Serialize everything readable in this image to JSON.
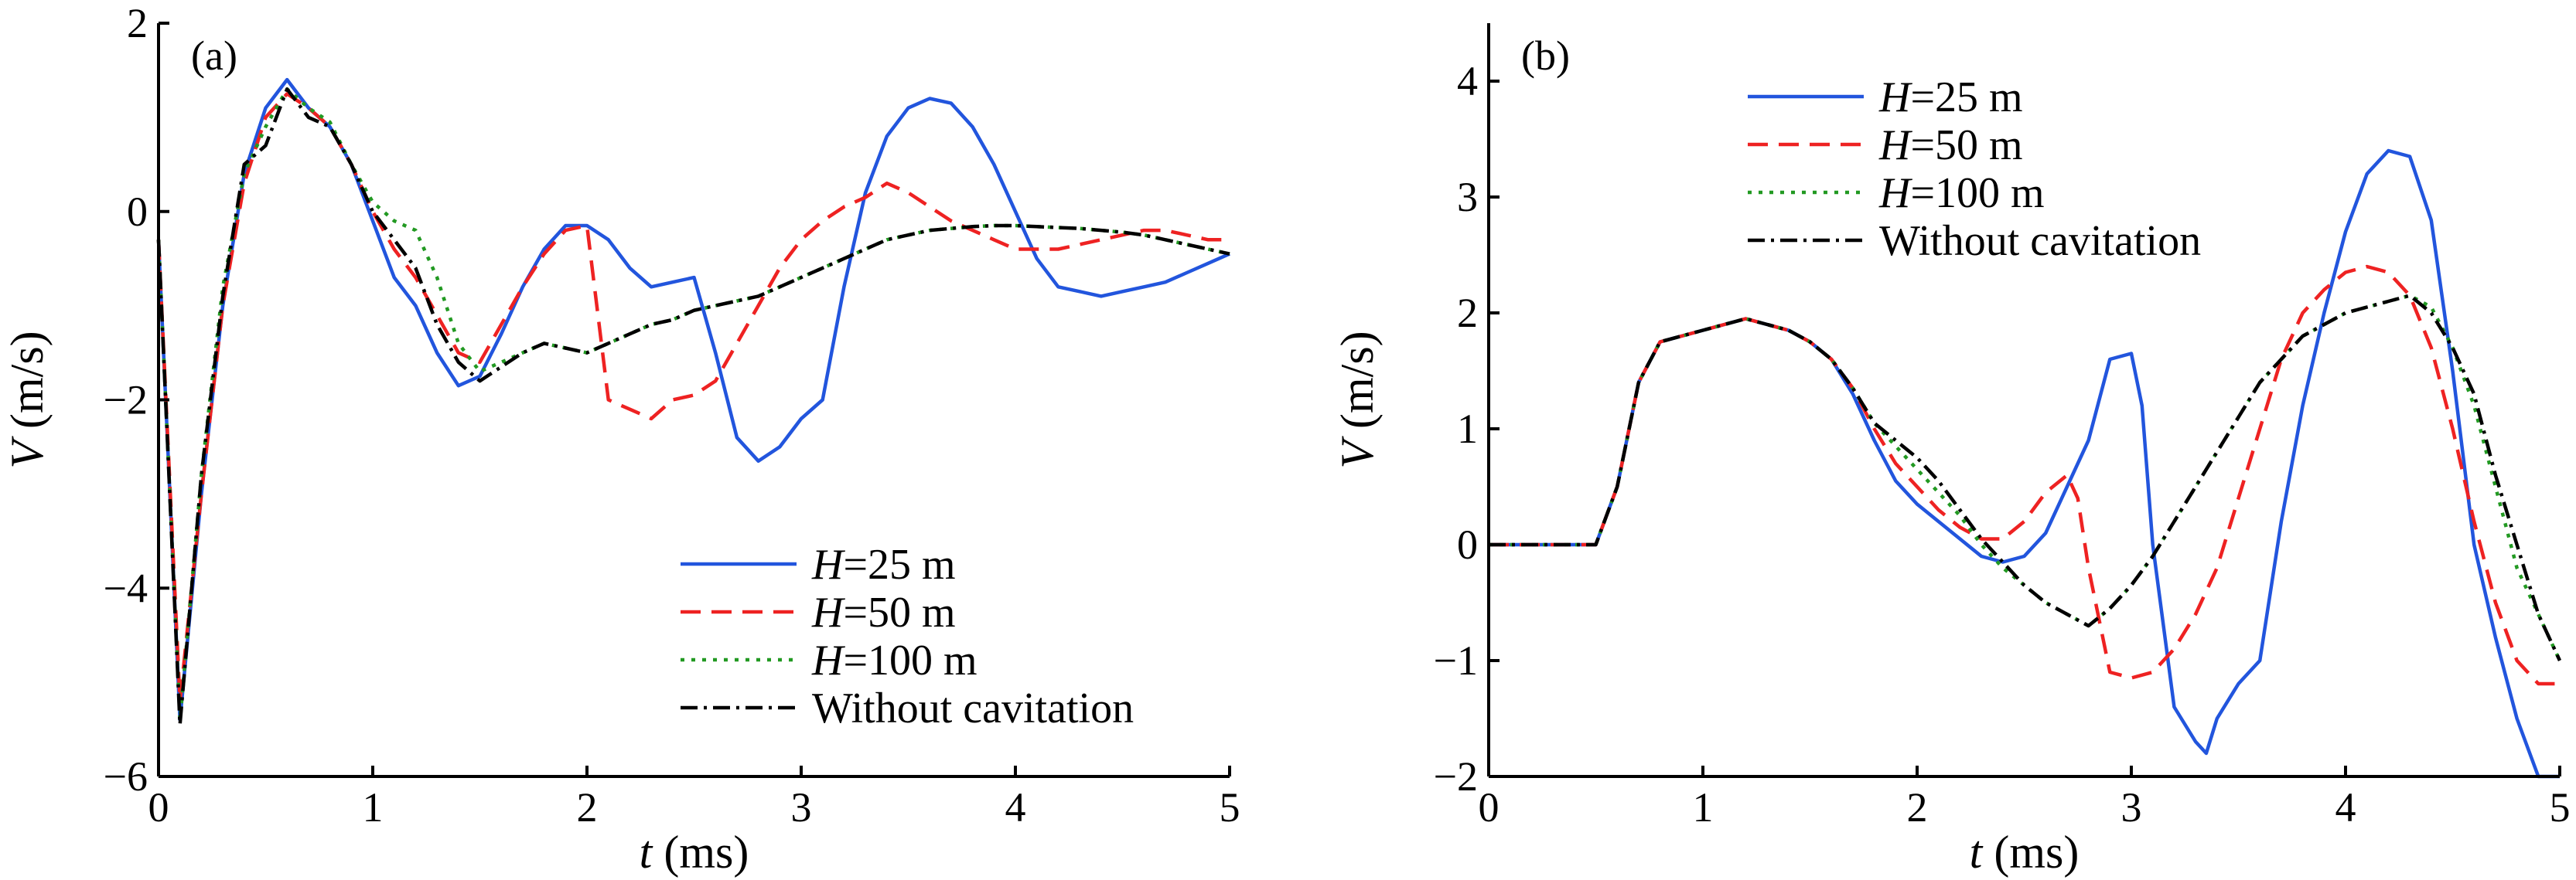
{
  "chart_data": [
    {
      "type": "line",
      "panel_label": "(a)",
      "xlabel_var": "t",
      "xlabel_unit": " (ms)",
      "ylabel_var": "V",
      "ylabel_unit": " (m/s)",
      "xlim": [
        0,
        5
      ],
      "ylim": [
        -6,
        2
      ],
      "xticks": [
        0,
        1,
        2,
        3,
        4,
        5
      ],
      "yticks": [
        -6,
        -4,
        -2,
        0,
        2
      ],
      "ytick_labels": [
        "−6",
        "−4",
        "−2",
        "0",
        "2"
      ],
      "legend_position": "bottom-right",
      "grid": false,
      "series": [
        {
          "name_var": "H",
          "name_rest": "=25 m",
          "color": "#2255dd",
          "dash": "",
          "x": [
            0,
            0.1,
            0.2,
            0.3,
            0.4,
            0.5,
            0.6,
            0.7,
            0.8,
            0.9,
            1.0,
            1.1,
            1.2,
            1.3,
            1.4,
            1.5,
            1.6,
            1.7,
            1.8,
            1.9,
            2.0,
            2.1,
            2.2,
            2.3,
            2.4,
            2.5,
            2.6,
            2.7,
            2.8,
            2.9,
            3.0,
            3.1,
            3.2,
            3.3,
            3.4,
            3.5,
            3.6,
            3.7,
            3.8,
            3.9,
            4.0,
            4.1,
            4.2,
            4.3,
            4.4,
            4.5,
            4.6,
            4.7,
            4.8,
            4.9,
            5.0
          ],
          "y": [
            -0.3,
            -5.4,
            -3.0,
            -1.0,
            0.4,
            1.1,
            1.4,
            1.1,
            0.9,
            0.5,
            -0.1,
            -0.7,
            -1.0,
            -1.5,
            -1.85,
            -1.75,
            -1.3,
            -0.8,
            -0.4,
            -0.15,
            -0.15,
            -0.3,
            -0.6,
            -0.8,
            -0.75,
            -0.7,
            -1.5,
            -2.4,
            -2.65,
            -2.5,
            -2.2,
            -2.0,
            -0.8,
            0.2,
            0.8,
            1.1,
            1.2,
            1.15,
            0.9,
            0.5,
            0.0,
            -0.5,
            -0.8,
            -0.85,
            -0.9,
            -0.85,
            -0.8,
            -0.75,
            -0.65,
            -0.55,
            -0.45
          ]
        },
        {
          "name_var": "H",
          "name_rest": "=50 m",
          "color": "#ee2222",
          "dash": "26,14",
          "x": [
            0,
            0.1,
            0.2,
            0.3,
            0.4,
            0.5,
            0.6,
            0.7,
            0.8,
            0.9,
            1.0,
            1.1,
            1.2,
            1.3,
            1.4,
            1.5,
            1.6,
            1.7,
            1.8,
            1.9,
            2.0,
            2.1,
            2.2,
            2.3,
            2.4,
            2.5,
            2.6,
            2.7,
            2.8,
            2.9,
            3.0,
            3.1,
            3.2,
            3.3,
            3.4,
            3.5,
            3.6,
            3.7,
            3.8,
            3.9,
            4.0,
            4.1,
            4.2,
            4.3,
            4.4,
            4.5,
            4.6,
            4.7,
            4.8,
            4.9,
            5.0
          ],
          "y": [
            -0.3,
            -5.2,
            -3.0,
            -1.0,
            0.3,
            1.0,
            1.25,
            1.1,
            0.9,
            0.5,
            0.0,
            -0.4,
            -0.7,
            -1.1,
            -1.5,
            -1.6,
            -1.2,
            -0.8,
            -0.45,
            -0.2,
            -0.15,
            -2.0,
            -2.1,
            -2.2,
            -2.0,
            -1.95,
            -1.8,
            -1.4,
            -1.0,
            -0.6,
            -0.3,
            -0.1,
            0.05,
            0.15,
            0.3,
            0.2,
            0.05,
            -0.1,
            -0.2,
            -0.3,
            -0.4,
            -0.4,
            -0.4,
            -0.35,
            -0.3,
            -0.25,
            -0.2,
            -0.2,
            -0.25,
            -0.3,
            -0.3
          ]
        },
        {
          "name_var": "H",
          "name_rest": "=100 m",
          "color": "#229922",
          "dash": "5,9",
          "x": [
            0,
            0.1,
            0.2,
            0.3,
            0.4,
            0.5,
            0.6,
            0.7,
            0.8,
            0.9,
            1.0,
            1.1,
            1.2,
            1.3,
            1.4,
            1.5,
            1.6,
            1.7,
            1.8,
            1.9,
            2.0,
            2.1,
            2.2,
            2.3,
            2.4,
            2.5,
            2.6,
            2.7,
            2.8,
            2.9,
            3.0,
            3.1,
            3.2,
            3.3,
            3.4,
            3.5,
            3.6,
            3.7,
            3.8,
            3.9,
            4.0,
            4.1,
            4.2,
            4.3,
            4.4,
            4.5,
            4.6,
            4.7,
            4.8,
            4.9,
            5.0
          ],
          "y": [
            -0.3,
            -5.4,
            -2.8,
            -0.8,
            0.4,
            0.9,
            1.3,
            1.1,
            0.95,
            0.5,
            0.1,
            -0.1,
            -0.2,
            -0.7,
            -1.4,
            -1.7,
            -1.6,
            -1.5,
            -1.4,
            -1.45,
            -1.5,
            -1.4,
            -1.3,
            -1.2,
            -1.15,
            -1.05,
            -1.0,
            -0.95,
            -0.9,
            -0.8,
            -0.7,
            -0.6,
            -0.5,
            -0.4,
            -0.3,
            -0.25,
            -0.2,
            -0.18,
            -0.16,
            -0.15,
            -0.15,
            -0.16,
            -0.17,
            -0.18,
            -0.2,
            -0.22,
            -0.25,
            -0.3,
            -0.35,
            -0.4,
            -0.45
          ]
        },
        {
          "name_var": "",
          "name_rest": "Without cavitation",
          "color": "#000000",
          "dash": "22,8,4,8",
          "x": [
            0,
            0.1,
            0.2,
            0.3,
            0.4,
            0.5,
            0.6,
            0.7,
            0.8,
            0.9,
            1.0,
            1.1,
            1.2,
            1.3,
            1.4,
            1.5,
            1.6,
            1.7,
            1.8,
            1.9,
            2.0,
            2.1,
            2.2,
            2.3,
            2.4,
            2.5,
            2.6,
            2.7,
            2.8,
            2.9,
            3.0,
            3.1,
            3.2,
            3.3,
            3.4,
            3.5,
            3.6,
            3.7,
            3.8,
            3.9,
            4.0,
            4.1,
            4.2,
            4.3,
            4.4,
            4.5,
            4.6,
            4.7,
            4.8,
            4.9,
            5.0
          ],
          "y": [
            -0.3,
            -5.45,
            -2.8,
            -0.9,
            0.5,
            0.7,
            1.3,
            1.0,
            0.9,
            0.5,
            0.0,
            -0.3,
            -0.6,
            -1.2,
            -1.6,
            -1.8,
            -1.65,
            -1.5,
            -1.4,
            -1.45,
            -1.5,
            -1.4,
            -1.3,
            -1.2,
            -1.15,
            -1.05,
            -1.0,
            -0.95,
            -0.9,
            -0.8,
            -0.7,
            -0.6,
            -0.5,
            -0.4,
            -0.3,
            -0.25,
            -0.2,
            -0.18,
            -0.16,
            -0.15,
            -0.15,
            -0.16,
            -0.17,
            -0.18,
            -0.2,
            -0.22,
            -0.25,
            -0.3,
            -0.35,
            -0.4,
            -0.45
          ]
        }
      ]
    },
    {
      "type": "line",
      "panel_label": "(b)",
      "xlabel_var": "t",
      "xlabel_unit": " (ms)",
      "ylabel_var": "V",
      "ylabel_unit": " (m/s)",
      "xlim": [
        0,
        5
      ],
      "ylim": [
        -2,
        4.5
      ],
      "xticks": [
        0,
        1,
        2,
        3,
        4,
        5
      ],
      "yticks": [
        -2,
        -1,
        0,
        1,
        2,
        3,
        4
      ],
      "ytick_labels": [
        "−2",
        "−1",
        "0",
        "1",
        "2",
        "3",
        "4"
      ],
      "legend_position": "top-left",
      "grid": false,
      "series": [
        {
          "name_var": "H",
          "name_rest": "=25 m",
          "color": "#2255dd",
          "dash": "",
          "x": [
            0,
            0.5,
            0.6,
            0.7,
            0.8,
            0.9,
            1.0,
            1.1,
            1.2,
            1.3,
            1.4,
            1.5,
            1.6,
            1.7,
            1.8,
            1.9,
            2.0,
            2.1,
            2.2,
            2.3,
            2.4,
            2.5,
            2.6,
            2.7,
            2.8,
            2.9,
            3.0,
            3.05,
            3.1,
            3.2,
            3.3,
            3.35,
            3.4,
            3.5,
            3.6,
            3.7,
            3.8,
            3.9,
            4.0,
            4.1,
            4.2,
            4.3,
            4.4,
            4.5,
            4.6,
            4.7,
            4.8,
            4.9,
            5.0
          ],
          "y": [
            0,
            0.0,
            0.5,
            1.4,
            1.75,
            1.8,
            1.85,
            1.9,
            1.95,
            1.9,
            1.85,
            1.75,
            1.6,
            1.3,
            0.9,
            0.55,
            0.35,
            0.2,
            0.05,
            -0.1,
            -0.15,
            -0.1,
            0.1,
            0.5,
            0.9,
            1.6,
            1.65,
            1.2,
            0.0,
            -1.4,
            -1.7,
            -1.8,
            -1.5,
            -1.2,
            -1.0,
            0.2,
            1.2,
            2.0,
            2.7,
            3.2,
            3.4,
            3.35,
            2.8,
            1.5,
            0.0,
            -0.8,
            -1.5,
            -2.0,
            -2.0
          ]
        },
        {
          "name_var": "H",
          "name_rest": "=50 m",
          "color": "#ee2222",
          "dash": "26,14",
          "x": [
            0,
            0.5,
            0.6,
            0.7,
            0.8,
            0.9,
            1.0,
            1.1,
            1.2,
            1.3,
            1.4,
            1.5,
            1.6,
            1.7,
            1.8,
            1.9,
            2.0,
            2.1,
            2.2,
            2.3,
            2.4,
            2.5,
            2.6,
            2.7,
            2.75,
            2.8,
            2.9,
            3.0,
            3.1,
            3.2,
            3.3,
            3.4,
            3.5,
            3.6,
            3.7,
            3.8,
            3.9,
            4.0,
            4.1,
            4.2,
            4.3,
            4.4,
            4.5,
            4.6,
            4.7,
            4.8,
            4.9,
            5.0
          ],
          "y": [
            0,
            0.0,
            0.5,
            1.4,
            1.75,
            1.8,
            1.85,
            1.9,
            1.95,
            1.9,
            1.85,
            1.75,
            1.6,
            1.35,
            1.0,
            0.7,
            0.5,
            0.3,
            0.15,
            0.05,
            0.05,
            0.2,
            0.45,
            0.6,
            0.4,
            -0.2,
            -1.1,
            -1.15,
            -1.1,
            -0.9,
            -0.6,
            -0.2,
            0.4,
            1.0,
            1.6,
            2.0,
            2.2,
            2.35,
            2.4,
            2.35,
            2.15,
            1.7,
            1.0,
            0.2,
            -0.5,
            -1.0,
            -1.2,
            -1.2
          ]
        },
        {
          "name_var": "H",
          "name_rest": "=100 m",
          "color": "#229922",
          "dash": "5,9",
          "x": [
            0,
            0.5,
            0.6,
            0.7,
            0.8,
            0.9,
            1.0,
            1.1,
            1.2,
            1.3,
            1.4,
            1.5,
            1.6,
            1.7,
            1.8,
            1.9,
            2.0,
            2.1,
            2.2,
            2.3,
            2.4,
            2.5,
            2.6,
            2.7,
            2.8,
            2.9,
            3.0,
            3.1,
            3.2,
            3.3,
            3.4,
            3.5,
            3.6,
            3.7,
            3.8,
            3.9,
            4.0,
            4.1,
            4.2,
            4.3,
            4.4,
            4.5,
            4.6,
            4.7,
            4.8,
            4.9,
            5.0
          ],
          "y": [
            0,
            0.0,
            0.5,
            1.4,
            1.75,
            1.8,
            1.85,
            1.9,
            1.95,
            1.9,
            1.85,
            1.75,
            1.6,
            1.35,
            1.05,
            0.85,
            0.65,
            0.45,
            0.25,
            0.0,
            -0.2,
            -0.35,
            -0.5,
            -0.6,
            -0.7,
            -0.55,
            -0.35,
            -0.1,
            0.2,
            0.5,
            0.8,
            1.1,
            1.4,
            1.6,
            1.8,
            1.9,
            2.0,
            2.05,
            2.1,
            2.15,
            2.05,
            1.7,
            1.2,
            0.5,
            -0.2,
            -0.6,
            -1.0
          ]
        },
        {
          "name_var": "",
          "name_rest": "Without cavitation",
          "color": "#000000",
          "dash": "22,8,4,8",
          "x": [
            0,
            0.5,
            0.6,
            0.7,
            0.8,
            0.9,
            1.0,
            1.1,
            1.2,
            1.3,
            1.4,
            1.5,
            1.6,
            1.7,
            1.8,
            1.9,
            2.0,
            2.1,
            2.2,
            2.3,
            2.4,
            2.5,
            2.6,
            2.7,
            2.8,
            2.9,
            3.0,
            3.1,
            3.2,
            3.3,
            3.4,
            3.5,
            3.6,
            3.7,
            3.8,
            3.9,
            4.0,
            4.1,
            4.2,
            4.3,
            4.4,
            4.5,
            4.6,
            4.7,
            4.8,
            4.9,
            5.0
          ],
          "y": [
            0,
            0.0,
            0.5,
            1.4,
            1.75,
            1.8,
            1.85,
            1.9,
            1.95,
            1.9,
            1.85,
            1.75,
            1.6,
            1.35,
            1.05,
            0.9,
            0.75,
            0.55,
            0.3,
            0.05,
            -0.15,
            -0.35,
            -0.5,
            -0.6,
            -0.7,
            -0.55,
            -0.35,
            -0.1,
            0.2,
            0.5,
            0.8,
            1.1,
            1.4,
            1.6,
            1.8,
            1.9,
            2.0,
            2.05,
            2.1,
            2.15,
            2.0,
            1.7,
            1.3,
            0.6,
            0.0,
            -0.6,
            -1.0
          ]
        }
      ]
    }
  ]
}
